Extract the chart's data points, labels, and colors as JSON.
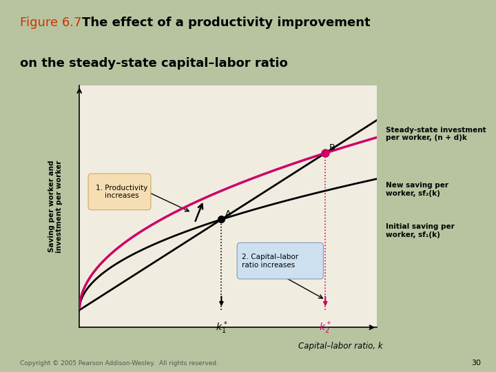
{
  "title_prefix": "Figure 6.7",
  "title_main": "The effect of a productivity improvement\non the steady-state capital–labor ratio",
  "bg_outer": "#b8c4a0",
  "bg_inner": "#e8e4d0",
  "plot_bg": "#f0ece0",
  "nd": 0.55,
  "s1": 0.38,
  "s2": 0.5,
  "xlabel": "Capital–labor ratio, k",
  "ylabel": "Saving per worker and\ninvestment per worker",
  "steady_state_label": "Steady-state investment\nper worker, (n + d)k",
  "new_saving_label": "New saving per\nworker, sf₂(k)",
  "initial_saving_label": "Initial saving per\nworker, sf₁(k)",
  "annotation1_text": "1. Productivity\n    increases",
  "annotation2_text": "2. Capital–labor\nratio increases",
  "point_A_label": "A",
  "point_B_label": "B",
  "line_color_steady": "#000000",
  "line_color_new_saving": "#cc0066",
  "line_color_initial_saving": "#000000",
  "title_prefix_color": "#cc3300",
  "k_label_color": "#cc0066",
  "footer_text": "Copyright © 2005 Pearson Addison-Wesley.  All rights reserved.",
  "page_number": "30"
}
